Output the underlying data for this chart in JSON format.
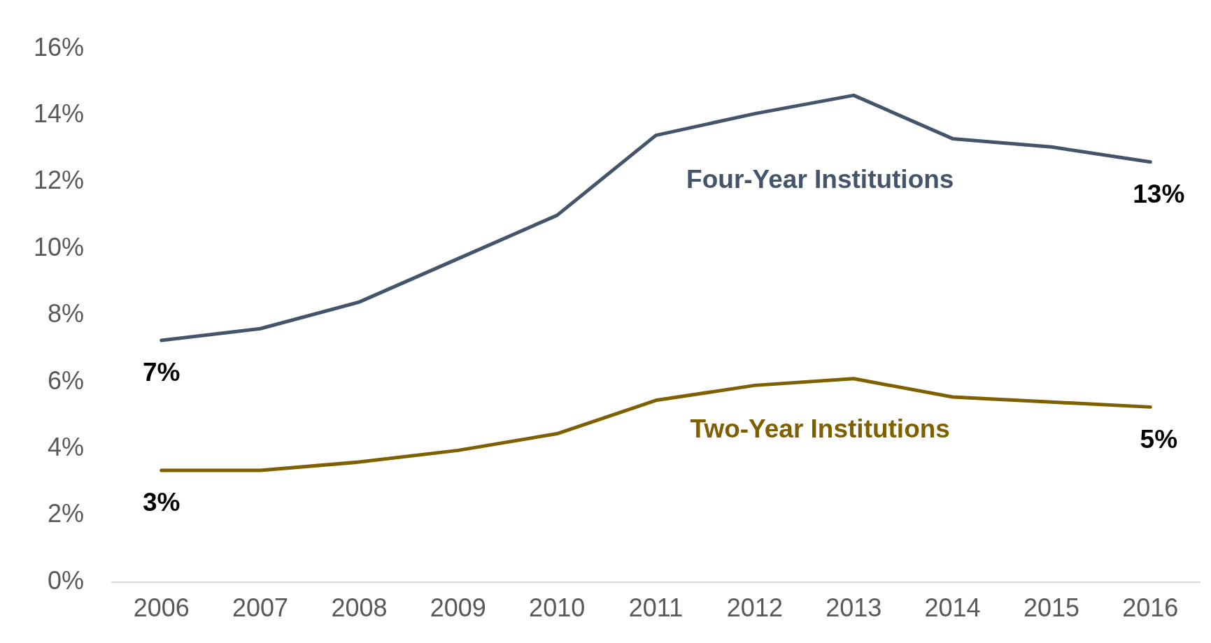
{
  "chart_data": {
    "type": "line",
    "categories": [
      "2006",
      "2007",
      "2008",
      "2009",
      "2010",
      "2011",
      "2012",
      "2013",
      "2014",
      "2015",
      "2016"
    ],
    "series": [
      {
        "name": "Four-Year Institutions",
        "color": "#44546a",
        "values": [
          7.25,
          7.6,
          8.4,
          9.7,
          11.0,
          13.4,
          14.05,
          14.6,
          13.3,
          13.05,
          12.6
        ],
        "value_labels": [
          "7%",
          null,
          null,
          null,
          null,
          null,
          null,
          null,
          null,
          null,
          "13%"
        ]
      },
      {
        "name": "Two-Year Institutions",
        "color": "#7f6000",
        "values": [
          3.35,
          3.35,
          3.6,
          3.95,
          4.45,
          5.45,
          5.9,
          6.1,
          5.55,
          5.4,
          5.25
        ],
        "value_labels": [
          "3%",
          null,
          null,
          null,
          null,
          null,
          null,
          null,
          null,
          null,
          "5%"
        ]
      }
    ],
    "ylim": [
      0,
      16
    ],
    "yticks": [
      {
        "value": 0,
        "label": "0%"
      },
      {
        "value": 2,
        "label": "2%"
      },
      {
        "value": 4,
        "label": "4%"
      },
      {
        "value": 6,
        "label": "6%"
      },
      {
        "value": 8,
        "label": "8%"
      },
      {
        "value": 10,
        "label": "10%"
      },
      {
        "value": 12,
        "label": "12%"
      },
      {
        "value": 14,
        "label": "14%"
      },
      {
        "value": 16,
        "label": "16%"
      }
    ],
    "grid": false,
    "legend": false,
    "marker": "none",
    "line_style": "solid"
  }
}
